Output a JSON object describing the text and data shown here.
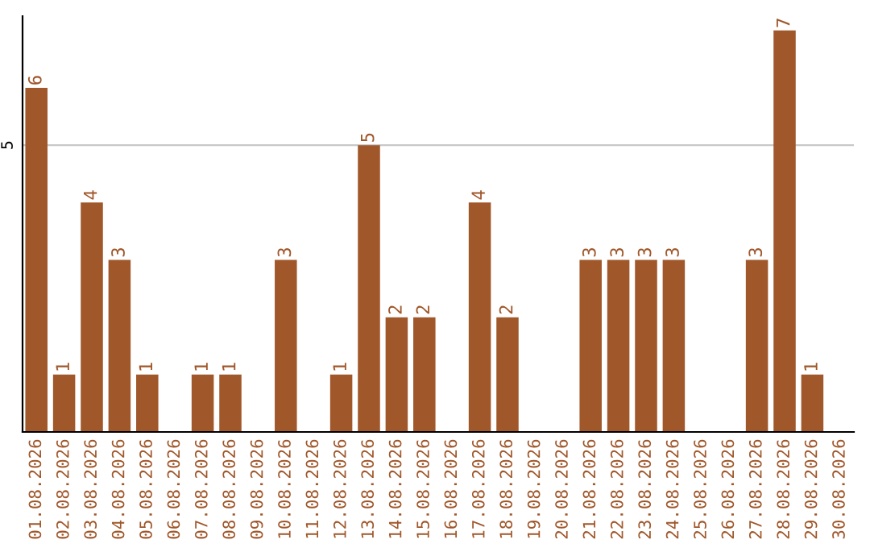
{
  "chart_data": {
    "type": "bar",
    "categories": [
      "01.08.2026",
      "02.08.2026",
      "03.08.2026",
      "04.08.2026",
      "05.08.2026",
      "06.08.2026",
      "07.08.2026",
      "08.08.2026",
      "09.08.2026",
      "10.08.2026",
      "11.08.2026",
      "12.08.2026",
      "13.08.2026",
      "14.08.2026",
      "15.08.2026",
      "16.08.2026",
      "17.08.2026",
      "18.08.2026",
      "19.08.2026",
      "20.08.2026",
      "21.08.2026",
      "22.08.2026",
      "23.08.2026",
      "24.08.2026",
      "25.08.2026",
      "26.08.2026",
      "27.08.2026",
      "28.08.2026",
      "29.08.2026",
      "30.08.2026"
    ],
    "values": [
      6,
      1,
      4,
      3,
      1,
      0,
      1,
      1,
      0,
      3,
      0,
      1,
      5,
      2,
      2,
      0,
      4,
      2,
      0,
      0,
      3,
      3,
      3,
      3,
      0,
      0,
      3,
      7,
      1,
      0
    ],
    "value_labels": [
      "6",
      "1",
      "4",
      "3",
      "1",
      null,
      "1",
      "1",
      null,
      "3",
      null,
      "1",
      "5",
      "2",
      "2",
      null,
      "4",
      "2",
      null,
      null,
      "3",
      "3",
      "3",
      "3",
      null,
      null,
      "3",
      "7",
      "1",
      null
    ],
    "color": "#a0572a",
    "ylim": [
      0,
      7.25
    ],
    "yticks": [
      5
    ],
    "grid": "y",
    "legend": false
  }
}
